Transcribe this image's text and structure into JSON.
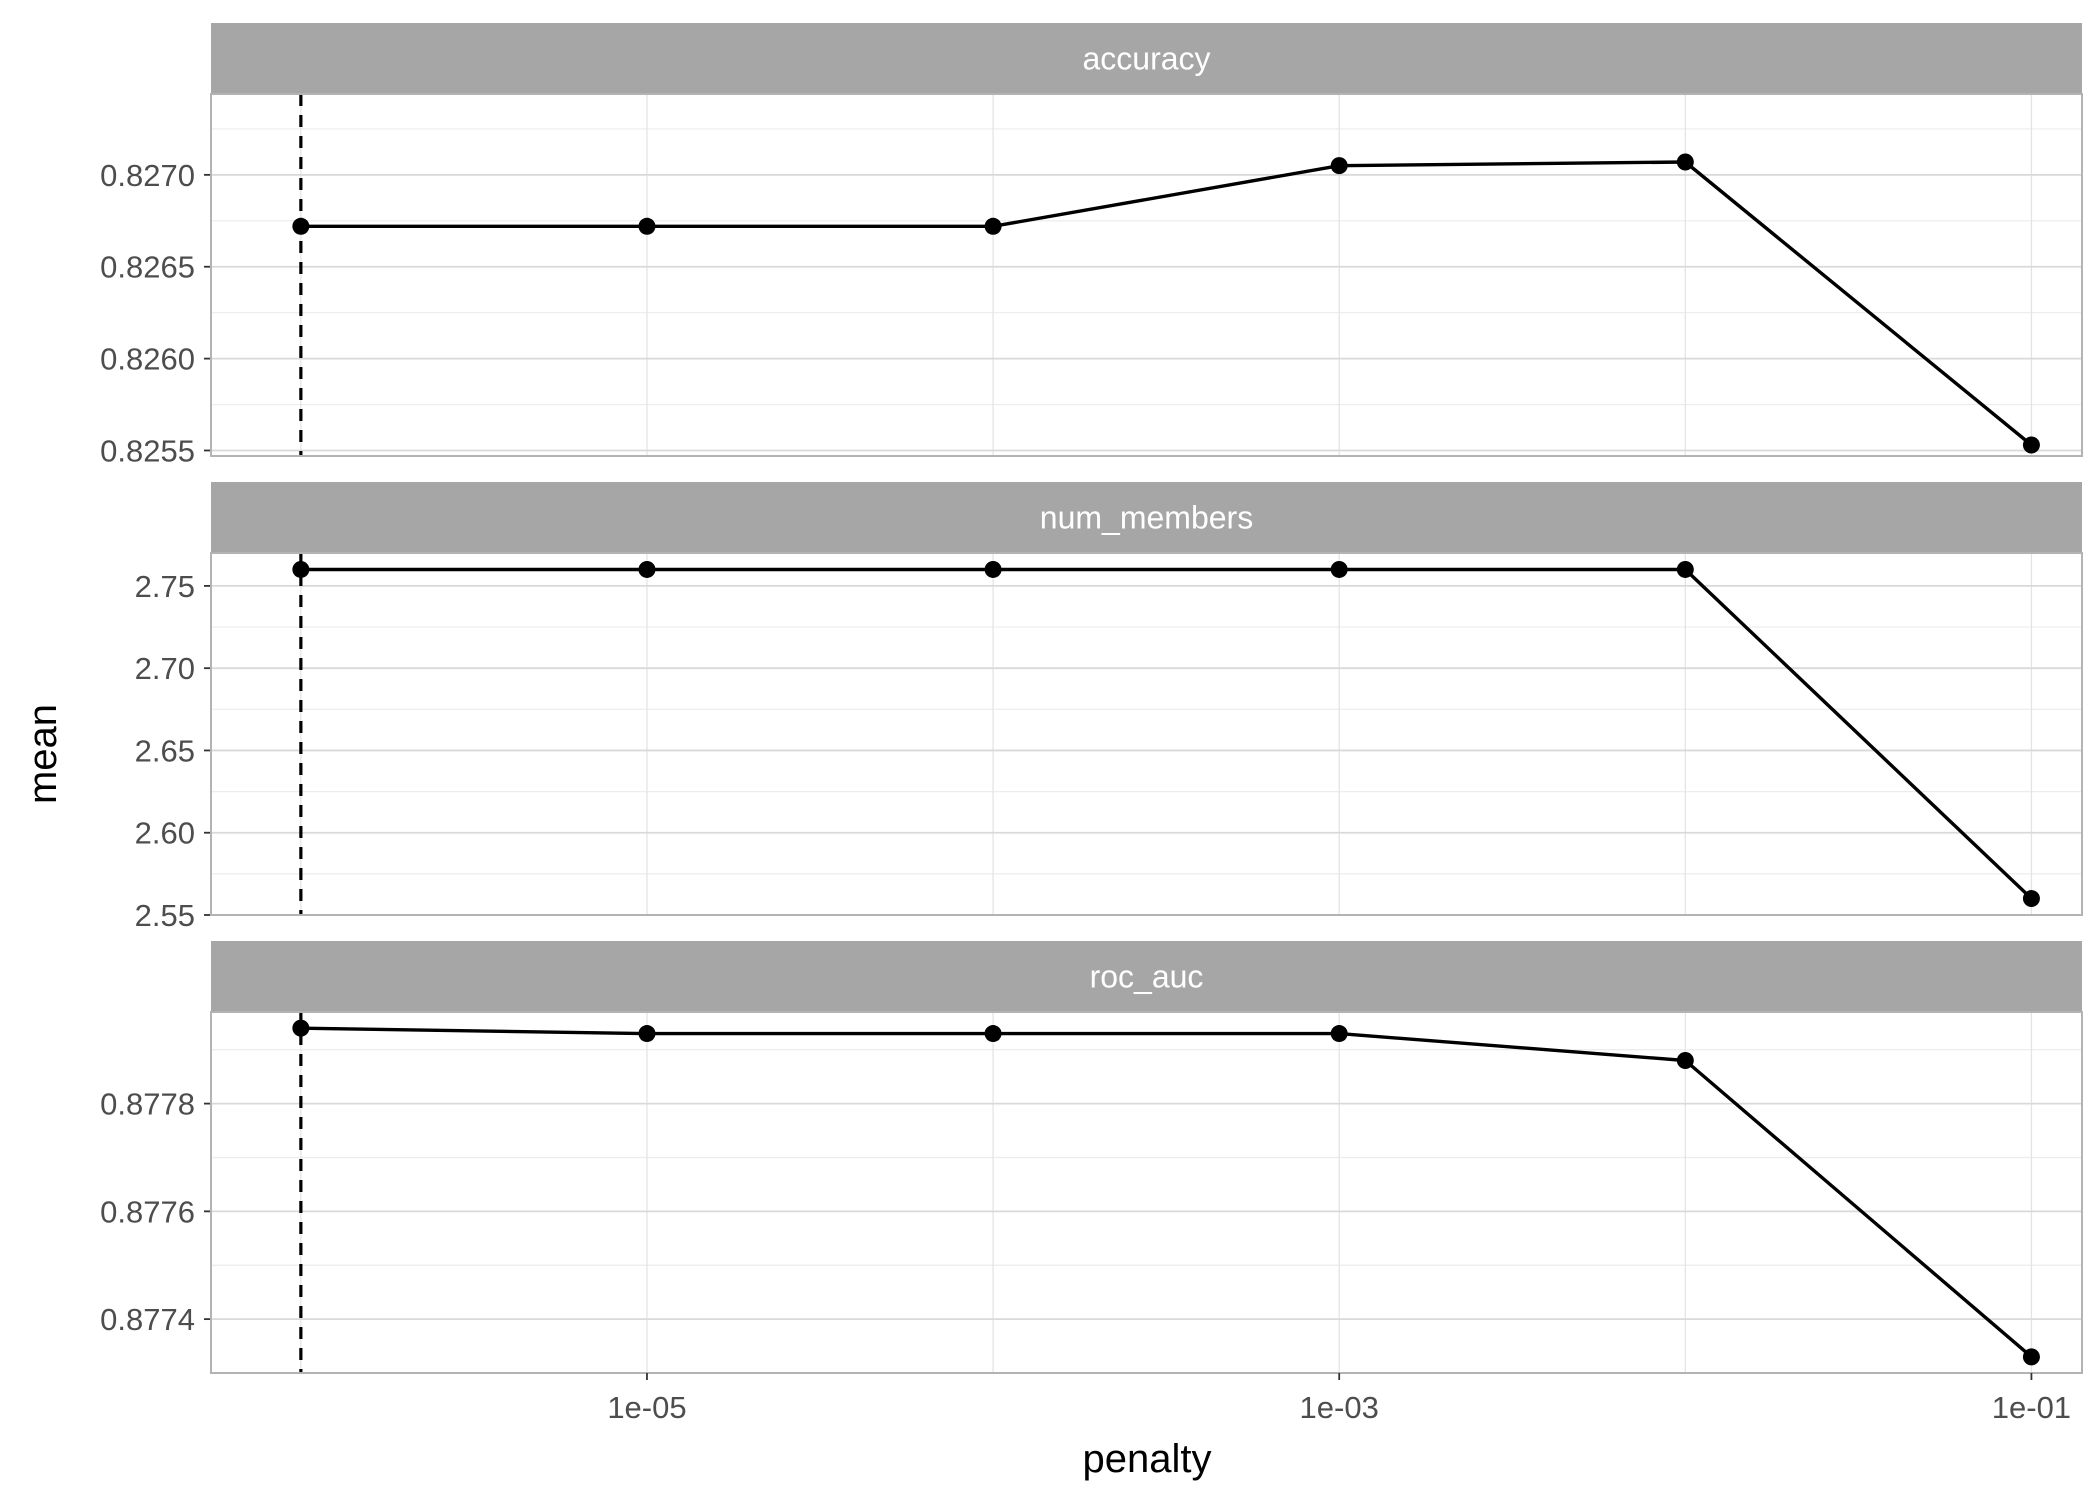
{
  "chart_data": {
    "type": "line",
    "xlabel": "penalty",
    "ylabel": "mean",
    "x_scale": "log10",
    "x": [
      1e-06,
      1e-05,
      0.0001,
      0.001,
      0.01,
      0.1
    ],
    "x_tick_values": [
      1e-05,
      0.001,
      0.1
    ],
    "x_tick_labels": [
      "1e-05",
      "1e-03",
      "1e-01"
    ],
    "xlim": [
      5.5e-07,
      0.14
    ],
    "reference_line": {
      "x": 1e-06,
      "style": "dashed"
    },
    "grid": true,
    "panels": [
      {
        "name": "accuracy",
        "values": [
          0.82672,
          0.82672,
          0.82672,
          0.82705,
          0.82707,
          0.82553
        ],
        "ylim": [
          0.82547,
          0.82744
        ],
        "y_ticks": [
          0.8255,
          0.826,
          0.8265,
          0.827
        ],
        "y_tick_labels": [
          "0.8255",
          "0.8260",
          "0.8265",
          "0.8270"
        ]
      },
      {
        "name": "num_members",
        "values": [
          2.76,
          2.76,
          2.76,
          2.76,
          2.76,
          2.56
        ],
        "ylim": [
          2.55,
          2.77
        ],
        "y_ticks": [
          2.55,
          2.6,
          2.65,
          2.7,
          2.75
        ],
        "y_tick_labels": [
          "2.55",
          "2.60",
          "2.65",
          "2.70",
          "2.75"
        ]
      },
      {
        "name": "roc_auc",
        "values": [
          0.87794,
          0.87793,
          0.87793,
          0.87793,
          0.87788,
          0.87733
        ],
        "ylim": [
          0.8773,
          0.87797
        ],
        "y_ticks": [
          0.8774,
          0.8776,
          0.8778
        ],
        "y_tick_labels": [
          "0.8774",
          "0.8776",
          "0.8778"
        ]
      }
    ],
    "colors": {
      "line": "#000000",
      "strip_background": "#a6a6a6",
      "strip_text": "#ffffff",
      "grid": "#d9d9d9",
      "panel_border": "#b3b3b3"
    }
  }
}
